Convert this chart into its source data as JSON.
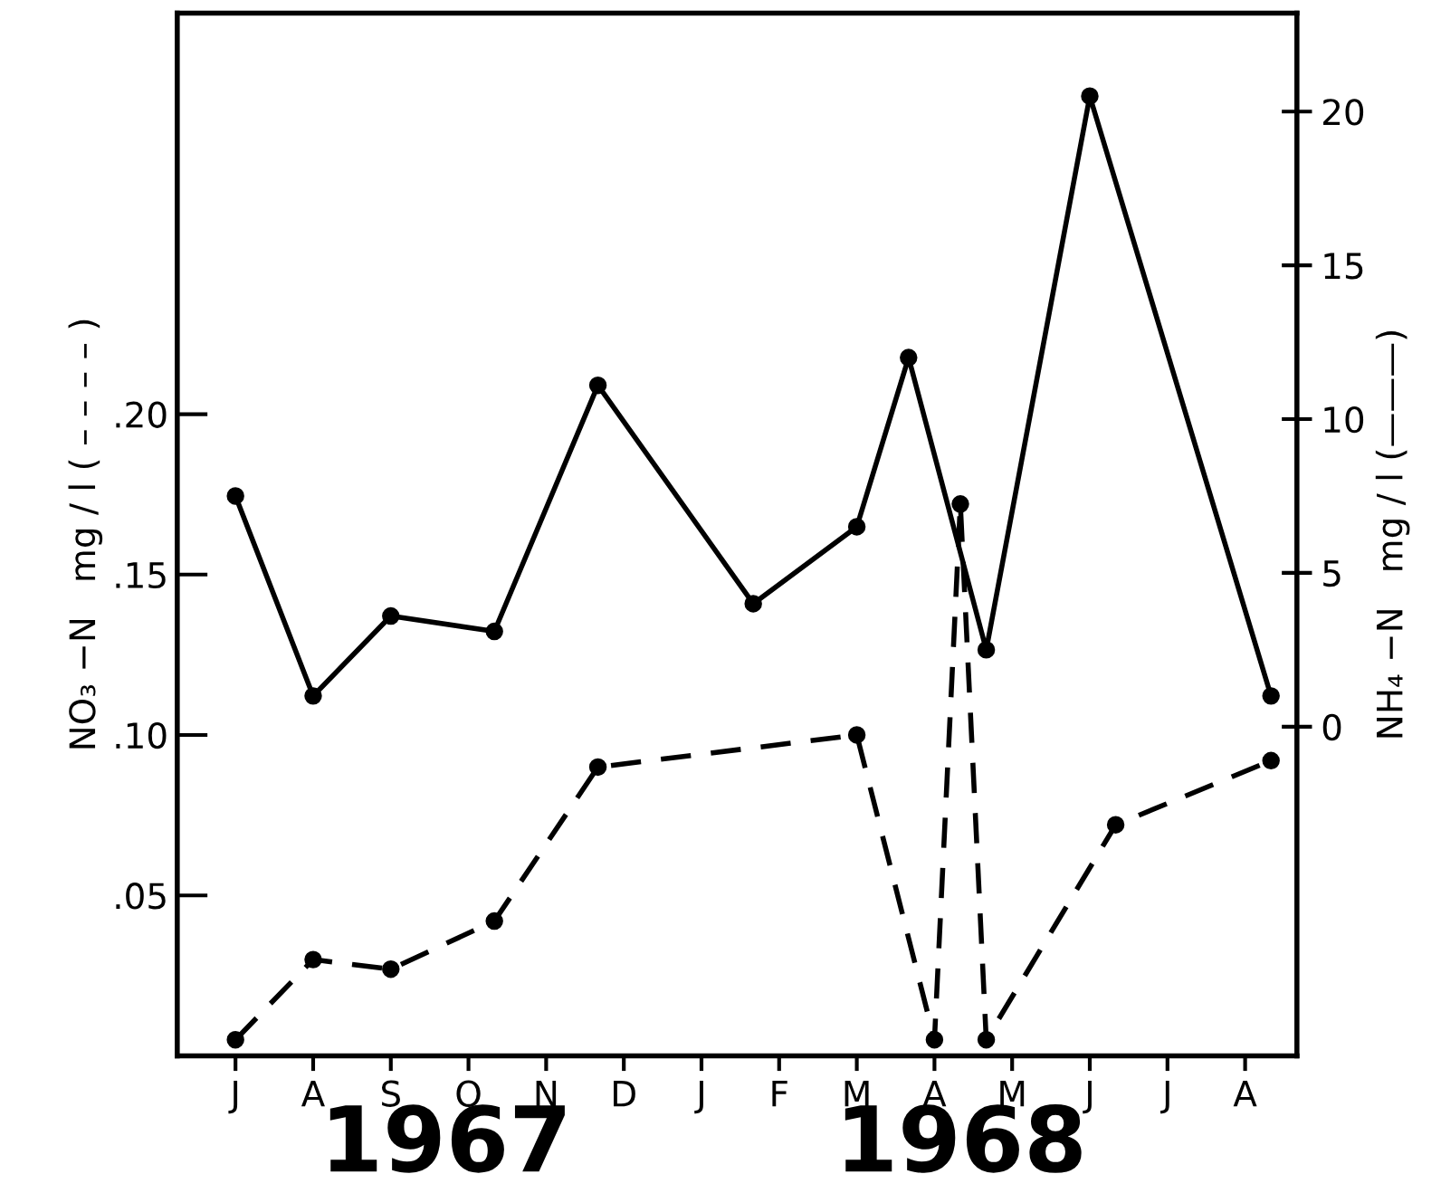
{
  "chart_data": {
    "type": "line",
    "ylabel": "NO₃ −N   mg / l ( – – – – )",
    "y2label": "NH₄ −N   mg / l (———)",
    "categories": [
      "J",
      null,
      null,
      "A",
      null,
      null,
      "S",
      null,
      null,
      "O",
      null,
      null,
      "N",
      null,
      null,
      "D",
      null,
      null,
      "J",
      null,
      null,
      "F",
      null,
      null,
      "M",
      null,
      null,
      "A",
      null,
      null,
      "M",
      null,
      null,
      "J",
      null,
      null,
      "J",
      null,
      null,
      "A",
      null,
      null
    ],
    "ylim": [
      0,
      0.325
    ],
    "yticks": [
      {
        "value": 0.05,
        "label": ".05"
      },
      {
        "value": 0.1,
        "label": ".10"
      },
      {
        "value": 0.15,
        "label": ".15"
      },
      {
        "value": 0.2,
        "label": ".20"
      }
    ],
    "y2lim": [
      -10.7,
      23.2
    ],
    "y2ticks": [
      0,
      5,
      10,
      15,
      20
    ],
    "series": [
      {
        "color": "#000000",
        "axis": "y2",
        "line_style": "solid",
        "values": [
          7.5,
          null,
          null,
          1.0,
          null,
          null,
          3.6,
          null,
          null,
          null,
          3.1,
          null,
          null,
          null,
          11.1,
          null,
          null,
          null,
          null,
          null,
          4.0,
          null,
          null,
          null,
          6.5,
          null,
          12.0,
          null,
          null,
          2.5,
          null,
          null,
          null,
          20.5,
          null,
          null,
          null,
          null,
          null,
          null,
          1.0,
          null
        ]
      },
      {
        "color": "#000000",
        "axis": "y",
        "line_style": "dashed",
        "values": [
          0.005,
          null,
          null,
          0.03,
          null,
          null,
          0.027,
          null,
          null,
          null,
          0.042,
          null,
          null,
          null,
          0.09,
          null,
          null,
          null,
          null,
          null,
          null,
          null,
          null,
          null,
          0.1,
          null,
          null,
          0.005,
          0.172,
          0.005,
          null,
          null,
          null,
          null,
          0.072,
          null,
          null,
          null,
          null,
          null,
          0.092,
          null
        ]
      }
    ],
    "marker": "circle",
    "grid": false,
    "legend": false,
    "annotations": [
      "1967",
      "1968"
    ]
  }
}
